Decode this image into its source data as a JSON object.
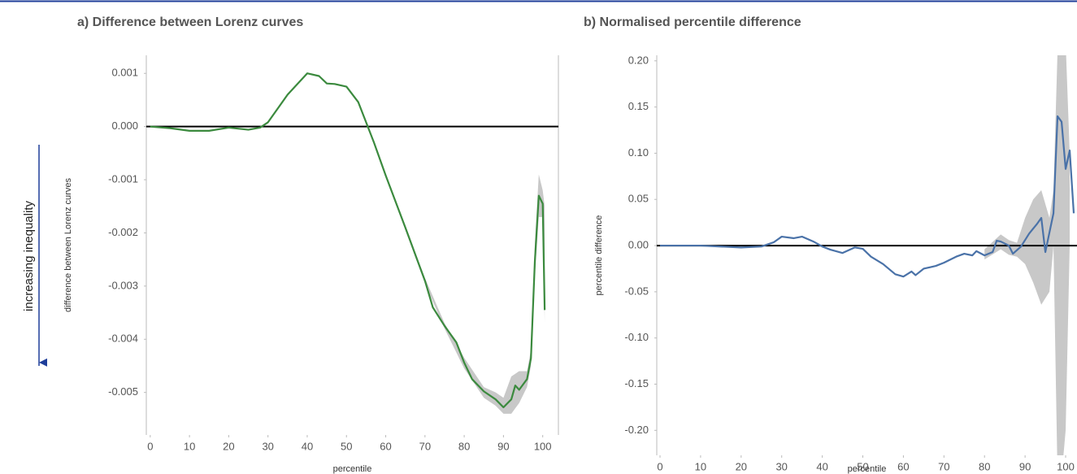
{
  "chart_data": [
    {
      "type": "line",
      "title": "a) Difference between Lorenz curves",
      "annotation": "increasing inequality",
      "xlabel": "percentile",
      "ylabel": "difference between Lorenz curves",
      "xlim": [
        -1,
        104
      ],
      "ylim": [
        -0.0058,
        0.00134
      ],
      "xticks": [
        0,
        10,
        20,
        30,
        40,
        50,
        60,
        70,
        80,
        90,
        100
      ],
      "yticks": [
        0.001,
        {
          "value": 0,
          "label": "0.000"
        },
        -0.001,
        -0.002,
        -0.003,
        -0.004,
        -0.005
      ],
      "hline": 0,
      "x": [
        0,
        5,
        10,
        15,
        20,
        25,
        28,
        30,
        35,
        40,
        43,
        45,
        47,
        50,
        53,
        55,
        57,
        60,
        65,
        70,
        72,
        75,
        78,
        80,
        82,
        85,
        88,
        90,
        92,
        93,
        94,
        96,
        97,
        98,
        99,
        100,
        100.5
      ],
      "series": [
        {
          "color": "#3b8a3e",
          "values": [
            0,
            -3e-05,
            -8e-05,
            -8e-05,
            -2e-05,
            -6e-05,
            -2e-05,
            8e-05,
            0.0006,
            0.001,
            0.00095,
            0.00081,
            0.0008,
            0.00075,
            0.00046,
            8e-05,
            -0.0003,
            -0.00092,
            -0.0019,
            -0.0029,
            -0.0034,
            -0.00375,
            -0.00406,
            -0.00444,
            -0.00475,
            -0.00498,
            -0.00513,
            -0.00528,
            -0.00513,
            -0.00487,
            -0.00495,
            -0.00475,
            -0.00436,
            -0.00253,
            -0.0013,
            -0.00145,
            -0.00345
          ]
        }
      ],
      "band": {
        "color": "#c8c8c8",
        "x": [
          60,
          70,
          75,
          80,
          85,
          88,
          90,
          92,
          94,
          96,
          97,
          98,
          99,
          100,
          100.5
        ],
        "upper": [
          -0.0009,
          -0.00285,
          -0.0037,
          -0.00435,
          -0.0049,
          -0.005,
          -0.0051,
          -0.0047,
          -0.0046,
          -0.0046,
          -0.0042,
          -0.0022,
          -0.0009,
          -0.0012,
          -0.0015
        ],
        "lower": [
          -0.00095,
          -0.00295,
          -0.0038,
          -0.00455,
          -0.0051,
          -0.00525,
          -0.0054,
          -0.0054,
          -0.0052,
          -0.0049,
          -0.0045,
          -0.0028,
          -0.0017,
          -0.0017,
          -0.0037
        ]
      }
    },
    {
      "type": "line",
      "title": "b) Normalised percentile difference",
      "xlabel": "percentile",
      "ylabel": "percentile difference",
      "xlim": [
        -0.8,
        102.8
      ],
      "ylim": [
        -0.227,
        0.206
      ],
      "xticks": [
        0,
        10,
        20,
        30,
        40,
        50,
        60,
        70,
        80,
        90,
        100
      ],
      "yticks": [
        {
          "value": 0.2,
          "label": "0.20"
        },
        0.15,
        {
          "value": 0.1,
          "label": "0.10"
        },
        0.05,
        {
          "value": 0,
          "label": "0.00"
        },
        -0.05,
        {
          "value": -0.1,
          "label": "-0.10"
        },
        -0.15,
        {
          "value": -0.2,
          "label": "-0.20"
        }
      ],
      "hline": 0,
      "x": [
        0,
        10,
        20,
        25,
        28,
        30,
        33,
        35,
        38,
        40,
        42,
        45,
        48,
        50,
        52,
        55,
        58,
        60,
        62,
        63,
        65,
        68,
        70,
        73,
        75,
        77,
        78,
        80,
        82,
        83,
        84,
        86,
        87,
        89,
        91,
        93,
        94,
        95,
        96,
        97,
        98,
        99,
        100,
        101,
        102
      ],
      "series": [
        {
          "color": "#4a72a8",
          "values": [
            0,
            0,
            -0.002,
            -0.001,
            0.0035,
            0.0097,
            0.008,
            0.0097,
            0.004,
            -0.001,
            -0.0044,
            -0.008,
            -0.002,
            -0.0035,
            -0.012,
            -0.02,
            -0.031,
            -0.0335,
            -0.028,
            -0.032,
            -0.025,
            -0.022,
            -0.0185,
            -0.012,
            -0.0088,
            -0.0106,
            -0.006,
            -0.0106,
            -0.007,
            0.0053,
            0.0044,
            0,
            -0.0088,
            -0.001,
            0.013,
            0.0238,
            0.03,
            -0.007,
            0.014,
            0.035,
            0.14,
            0.134,
            0.083,
            0.103,
            0.035
          ]
        }
      ],
      "band": {
        "color": "#c8c8c8",
        "x": [
          80,
          84,
          86,
          88,
          90,
          92,
          94,
          96,
          97,
          98,
          99,
          100,
          101
        ],
        "upper": [
          -0.004,
          0.012,
          0.006,
          0.003,
          0.03,
          0.05,
          0.06,
          0.03,
          0.06,
          0.21,
          0.22,
          0.22,
          0.1
        ],
        "lower": [
          -0.015,
          -0.004,
          -0.01,
          -0.012,
          -0.02,
          -0.04,
          -0.064,
          -0.05,
          0,
          -0.25,
          -0.25,
          -0.2,
          0
        ]
      }
    }
  ]
}
